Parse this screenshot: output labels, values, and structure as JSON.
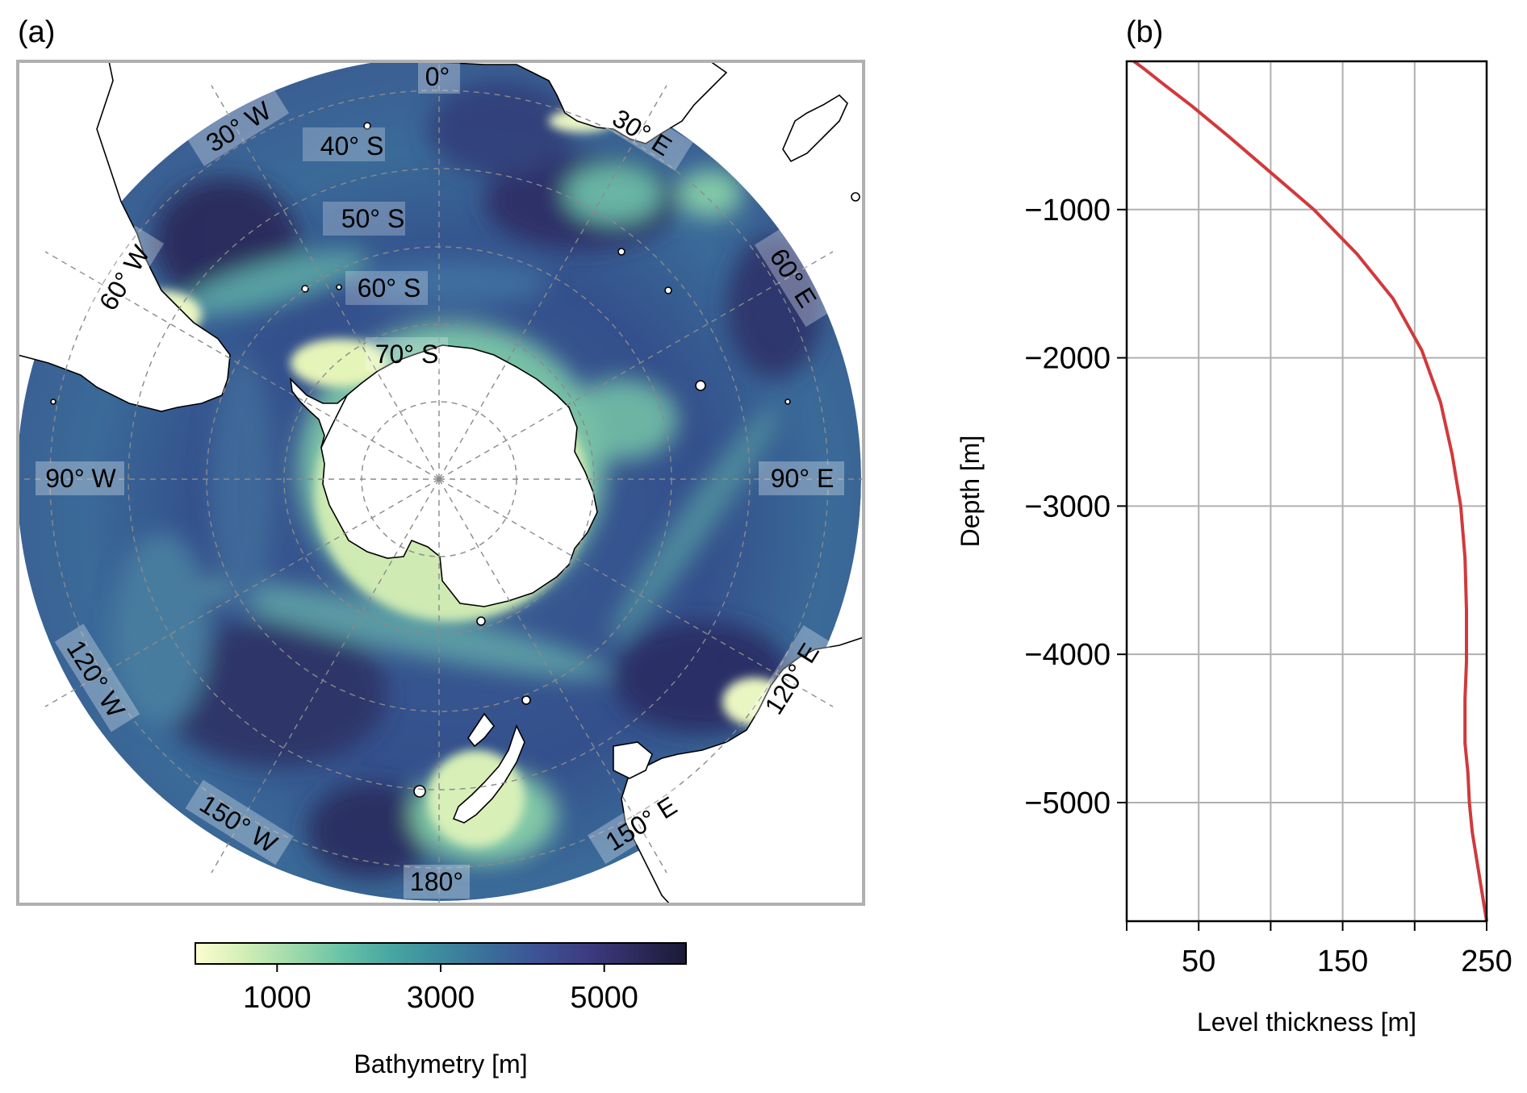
{
  "panel_a": {
    "label": "(a)",
    "lat_labels": [
      "40° S",
      "50° S",
      "60° S",
      "70° S"
    ],
    "lon_labels": {
      "lon_0": "0°",
      "lon_30e": "30° E",
      "lon_60e": "60° E",
      "lon_90e": "90° E",
      "lon_120e": "120° E",
      "lon_150e": "150° E",
      "lon_180": "180°",
      "lon_150w": "150° W",
      "lon_120w": "120° W",
      "lon_90w": "90° W",
      "lon_60w": "60° W",
      "lon_30w": "30° W"
    },
    "colorbar": {
      "label": "Bathymetry [m]",
      "range": [
        0,
        6000
      ],
      "ticks": [
        1000,
        3000,
        5000
      ],
      "tick_labels": [
        "1000",
        "3000",
        "5000"
      ],
      "colors": [
        "#fcfdd0",
        "#d2eeb6",
        "#9fd9ab",
        "#68c2a6",
        "#47a6a1",
        "#3d8a9e",
        "#3a6d9a",
        "#3d5294",
        "#3d3b80",
        "#2d2a5c",
        "#1b1a33"
      ]
    },
    "colors": {
      "ocean_deep": "#2b3a78",
      "ocean_mid": "#3e6f9b",
      "ocean_shallow": "#7dc8a8",
      "shelf": "#eef8c0",
      "land": "#ffffff",
      "coast": "#000000",
      "grid": "#8a8a8a"
    }
  },
  "panel_b": {
    "label": "(b)"
  },
  "chart_data": {
    "type": "line",
    "xlabel": "Level thickness [m]",
    "ylabel": "Depth [m]",
    "xlim": [
      0,
      250
    ],
    "ylim": [
      -5800,
      0
    ],
    "xticks": [
      0,
      50,
      100,
      150,
      200,
      250
    ],
    "xtick_labels": [
      "50",
      "150",
      "250"
    ],
    "xtick_labeled_values": [
      50,
      150,
      250
    ],
    "yticks": [
      -5000,
      -4000,
      -3000,
      -2000,
      -1000
    ],
    "ytick_labels": [
      "−5000",
      "−4000",
      "−3000",
      "−2000",
      "−1000"
    ],
    "grid": true,
    "line_color": "#d03a3c",
    "series": [
      {
        "x": [
          5,
          12,
          25,
          45,
          70,
          100,
          130,
          160,
          185,
          205,
          218,
          226,
          232,
          235,
          236,
          236,
          235,
          235,
          237,
          238,
          240,
          245,
          250
        ],
        "y": [
          0,
          -50,
          -150,
          -300,
          -500,
          -750,
          -1000,
          -1300,
          -1600,
          -1950,
          -2300,
          -2650,
          -3000,
          -3350,
          -3700,
          -4050,
          -4300,
          -4600,
          -4800,
          -5000,
          -5200,
          -5500,
          -5800
        ]
      }
    ]
  }
}
